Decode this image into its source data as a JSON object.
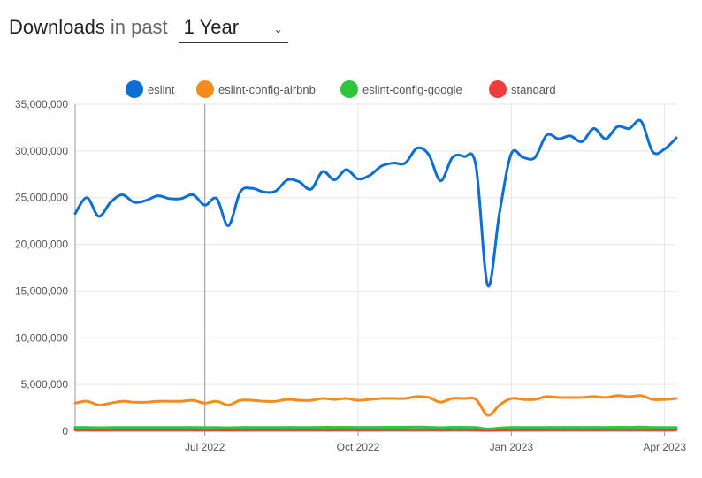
{
  "header": {
    "title_strong": "Downloads",
    "title_light": "in past",
    "period_selected": "1 Year"
  },
  "chart_data": {
    "type": "line",
    "title": "",
    "xlabel": "",
    "ylabel": "",
    "ylim": [
      0,
      35000000
    ],
    "yticks": [
      "35,000,000",
      "30,000,000",
      "25,000,000",
      "20,000,000",
      "15,000,000",
      "10,000,000",
      "5,000,000",
      "0"
    ],
    "ytick_values": [
      35000000,
      30000000,
      25000000,
      20000000,
      15000000,
      10000000,
      5000000,
      0
    ],
    "xticks": [
      "Jul 2022",
      "Oct 2022",
      "Jan 2023",
      "Apr 2023"
    ],
    "xtick_dates": [
      "2022-07-03",
      "2022-10-02",
      "2023-01-01",
      "2023-04-02"
    ],
    "x_range": [
      "2022-04-17",
      "2023-04-09"
    ],
    "grid": true,
    "legend_position": "top",
    "highlight_date": "2022-07-03",
    "x": [
      "2022-04-17",
      "2022-04-24",
      "2022-05-01",
      "2022-05-08",
      "2022-05-15",
      "2022-05-22",
      "2022-05-29",
      "2022-06-05",
      "2022-06-12",
      "2022-06-19",
      "2022-06-26",
      "2022-07-03",
      "2022-07-10",
      "2022-07-17",
      "2022-07-24",
      "2022-07-31",
      "2022-08-07",
      "2022-08-14",
      "2022-08-21",
      "2022-08-28",
      "2022-09-04",
      "2022-09-11",
      "2022-09-18",
      "2022-09-25",
      "2022-10-02",
      "2022-10-09",
      "2022-10-16",
      "2022-10-23",
      "2022-10-30",
      "2022-11-06",
      "2022-11-13",
      "2022-11-20",
      "2022-11-27",
      "2022-12-04",
      "2022-12-11",
      "2022-12-18",
      "2022-12-25",
      "2023-01-01",
      "2023-01-08",
      "2023-01-15",
      "2023-01-22",
      "2023-01-29",
      "2023-02-05",
      "2023-02-12",
      "2023-02-19",
      "2023-02-26",
      "2023-03-05",
      "2023-03-12",
      "2023-03-19",
      "2023-03-26",
      "2023-04-02",
      "2023-04-09"
    ],
    "series": [
      {
        "name": "eslint",
        "color": "#0c6fd6",
        "values": [
          23300000,
          25000000,
          23000000,
          24500000,
          25300000,
          24500000,
          24700000,
          25200000,
          24900000,
          24900000,
          25300000,
          24200000,
          24900000,
          22000000,
          25600000,
          26000000,
          25600000,
          25700000,
          26900000,
          26700000,
          25900000,
          27800000,
          26900000,
          28000000,
          27000000,
          27400000,
          28400000,
          28700000,
          28700000,
          30300000,
          29600000,
          26800000,
          29300000,
          29400000,
          28400000,
          15600000,
          23400000,
          29700000,
          29300000,
          29300000,
          31700000,
          31300000,
          31600000,
          31000000,
          32400000,
          31300000,
          32600000,
          32400000,
          33200000,
          29900000,
          30200000,
          31400000
        ]
      },
      {
        "name": "eslint-config-airbnb",
        "color": "#f58b1f",
        "values": [
          3000000,
          3200000,
          2800000,
          3000000,
          3200000,
          3100000,
          3100000,
          3200000,
          3200000,
          3200000,
          3300000,
          3000000,
          3200000,
          2800000,
          3300000,
          3300000,
          3200000,
          3200000,
          3400000,
          3300000,
          3300000,
          3500000,
          3400000,
          3500000,
          3300000,
          3400000,
          3500000,
          3500000,
          3500000,
          3700000,
          3600000,
          3100000,
          3500000,
          3500000,
          3400000,
          1700000,
          2800000,
          3500000,
          3400000,
          3400000,
          3700000,
          3600000,
          3600000,
          3600000,
          3700000,
          3600000,
          3800000,
          3700000,
          3800000,
          3400000,
          3400000,
          3500000
        ]
      },
      {
        "name": "eslint-config-google",
        "color": "#2ec43c",
        "values": [
          400000,
          410000,
          380000,
          400000,
          410000,
          400000,
          400000,
          410000,
          400000,
          400000,
          410000,
          390000,
          400000,
          370000,
          410000,
          410000,
          400000,
          400000,
          420000,
          410000,
          410000,
          430000,
          420000,
          430000,
          410000,
          420000,
          430000,
          430000,
          430000,
          440000,
          430000,
          390000,
          420000,
          420000,
          400000,
          250000,
          340000,
          410000,
          400000,
          400000,
          420000,
          410000,
          420000,
          410000,
          420000,
          410000,
          430000,
          420000,
          440000,
          400000,
          400000,
          410000
        ]
      },
      {
        "name": "standard",
        "color": "#f23c3c",
        "values": [
          150000,
          155000,
          145000,
          150000,
          155000,
          150000,
          150000,
          155000,
          150000,
          150000,
          155000,
          145000,
          150000,
          140000,
          155000,
          155000,
          150000,
          150000,
          160000,
          155000,
          155000,
          160000,
          155000,
          160000,
          155000,
          155000,
          160000,
          160000,
          160000,
          165000,
          160000,
          150000,
          160000,
          160000,
          155000,
          90000,
          130000,
          160000,
          155000,
          155000,
          165000,
          160000,
          160000,
          160000,
          165000,
          160000,
          165000,
          165000,
          170000,
          155000,
          155000,
          160000
        ]
      }
    ]
  }
}
